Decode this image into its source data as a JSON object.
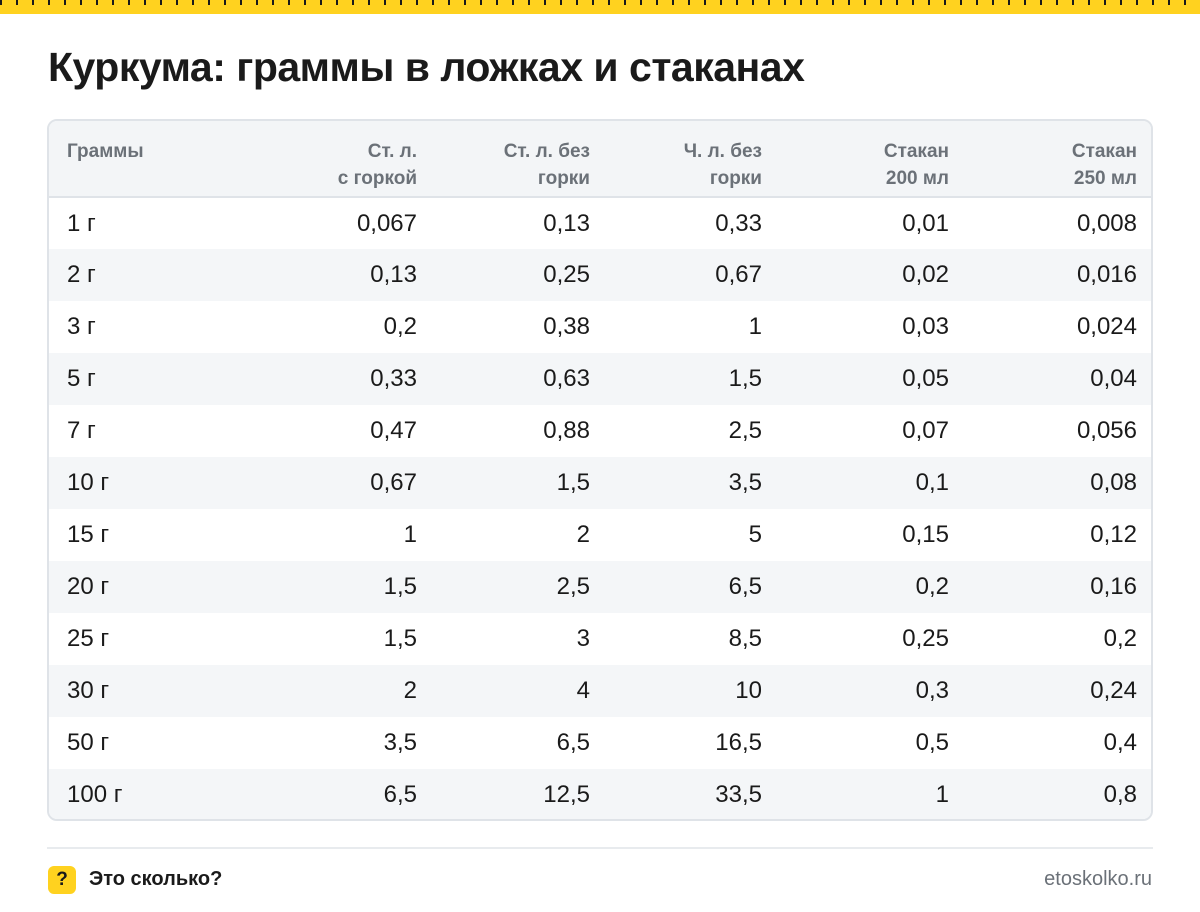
{
  "title": "Куркума: граммы в ложках и стаканах",
  "table": {
    "headers": [
      [
        "Граммы",
        ""
      ],
      [
        "Ст. л.",
        "с горкой"
      ],
      [
        "Ст. л. без",
        "горки"
      ],
      [
        "Ч. л. без",
        "горки"
      ],
      [
        "Стакан",
        "200 мл"
      ],
      [
        "Стакан",
        "250 мл"
      ]
    ],
    "rows": [
      [
        "1 г",
        "0,067",
        "0,13",
        "0,33",
        "0,01",
        "0,008"
      ],
      [
        "2 г",
        "0,13",
        "0,25",
        "0,67",
        "0,02",
        "0,016"
      ],
      [
        "3 г",
        "0,2",
        "0,38",
        "1",
        "0,03",
        "0,024"
      ],
      [
        "5 г",
        "0,33",
        "0,63",
        "1,5",
        "0,05",
        "0,04"
      ],
      [
        "7 г",
        "0,47",
        "0,88",
        "2,5",
        "0,07",
        "0,056"
      ],
      [
        "10 г",
        "0,67",
        "1,5",
        "3,5",
        "0,1",
        "0,08"
      ],
      [
        "15 г",
        "1",
        "2",
        "5",
        "0,15",
        "0,12"
      ],
      [
        "20 г",
        "1,5",
        "2,5",
        "6,5",
        "0,2",
        "0,16"
      ],
      [
        "25 г",
        "1,5",
        "3",
        "8,5",
        "0,25",
        "0,2"
      ],
      [
        "30 г",
        "2",
        "4",
        "10",
        "0,3",
        "0,24"
      ],
      [
        "50 г",
        "3,5",
        "6,5",
        "16,5",
        "0,5",
        "0,4"
      ],
      [
        "100 г",
        "6,5",
        "12,5",
        "33,5",
        "1",
        "0,8"
      ]
    ]
  },
  "footer": {
    "badge": "?",
    "brand": "Это сколько?",
    "site": "etoskolko.ru"
  },
  "colors": {
    "accent": "#ffd21f",
    "header_bg": "#f3f5f7",
    "stripe_bg": "#f4f6f8",
    "border": "#dfe3e8",
    "muted_text": "#6b7178"
  }
}
